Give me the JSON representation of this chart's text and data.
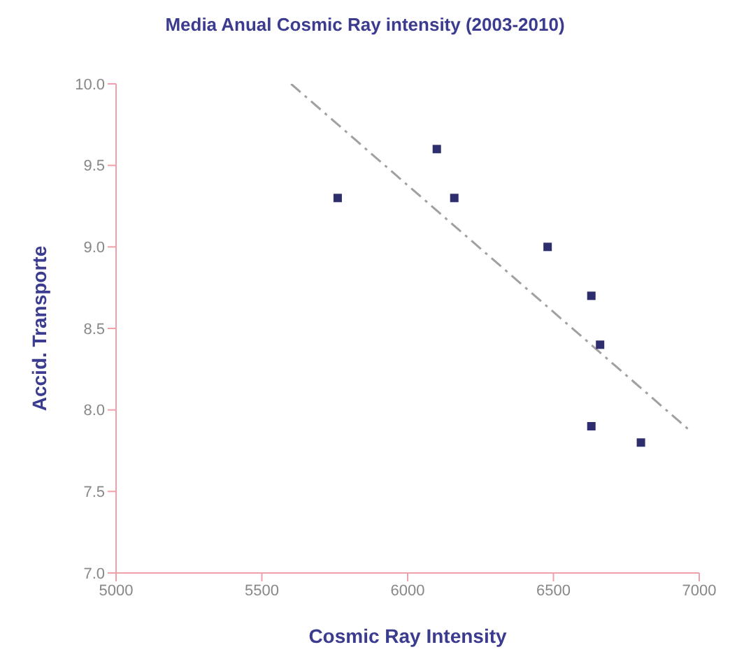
{
  "chart_data": {
    "type": "scatter",
    "title": "Media Anual Cosmic Ray intensity (2003-2010)",
    "xlabel": "Cosmic Ray Intensity",
    "ylabel": "Accid. Transporte",
    "xlim": [
      5000,
      7000
    ],
    "xticks": [
      5000,
      5500,
      6000,
      6500,
      7000
    ],
    "ylim": [
      7,
      10
    ],
    "yticks": [
      {
        "value": 7,
        "label": "7.0"
      },
      {
        "value": 7.5,
        "label": "7.5"
      },
      {
        "value": 8,
        "label": "8.0"
      },
      {
        "value": 8.5,
        "label": "8.5"
      },
      {
        "value": 9,
        "label": "9.0"
      },
      {
        "value": 9.5,
        "label": "9.5"
      },
      {
        "value": 10,
        "label": "10.0"
      }
    ],
    "grid": false,
    "legend": false,
    "marker": "square",
    "series": [
      {
        "color": "#2e2e6e",
        "x": [
          5760,
          6100,
          6160,
          6480,
          6630,
          6660,
          6630,
          6800
        ],
        "values": [
          9.3,
          9.6,
          9.3,
          9.0,
          8.7,
          8.4,
          7.9,
          7.8
        ]
      },
      {
        "type": "line",
        "color": "#a0a0a0",
        "line_style": "dashed",
        "marker": "none",
        "x": [
          5600,
          6970
        ],
        "values": [
          10.0,
          7.87
        ]
      }
    ]
  }
}
